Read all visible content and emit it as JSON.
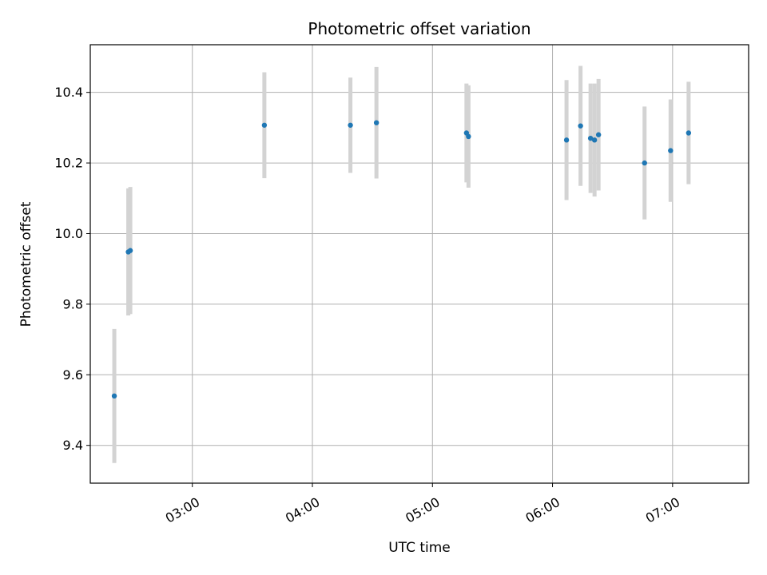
{
  "chart_data": {
    "type": "scatter",
    "title": "Photometric offset variation",
    "xlabel": "UTC time",
    "ylabel": "Photometric offset",
    "x_ticks": [
      "03:00",
      "04:00",
      "05:00",
      "06:00",
      "07:00"
    ],
    "y_ticks": [
      "9.4",
      "9.6",
      "9.8",
      "10.0",
      "10.2",
      "10.4"
    ],
    "xlim": [
      "02:09",
      "07:38"
    ],
    "ylim": [
      9.293,
      10.535
    ],
    "grid": true,
    "series": [
      {
        "x": [
          "02:21",
          "02:28",
          "02:29",
          "03:36",
          "04:19",
          "04:32",
          "05:17",
          "05:18",
          "06:07",
          "06:14",
          "06:19",
          "06:21",
          "06:23",
          "06:46",
          "06:59",
          "07:08"
        ],
        "y": [
          9.54,
          9.948,
          9.952,
          10.307,
          10.307,
          10.314,
          10.285,
          10.275,
          10.265,
          10.305,
          10.27,
          10.265,
          10.28,
          10.2,
          10.235,
          10.285
        ],
        "error": [
          0.19,
          0.18,
          0.18,
          0.15,
          0.135,
          0.158,
          0.14,
          0.145,
          0.17,
          0.17,
          0.155,
          0.16,
          0.158,
          0.16,
          0.145,
          0.145
        ]
      }
    ],
    "colors": {
      "point": "#1f77b4",
      "errorbar": "#d3d3d3",
      "grid": "#b0b0b0",
      "axis": "#000000"
    }
  }
}
